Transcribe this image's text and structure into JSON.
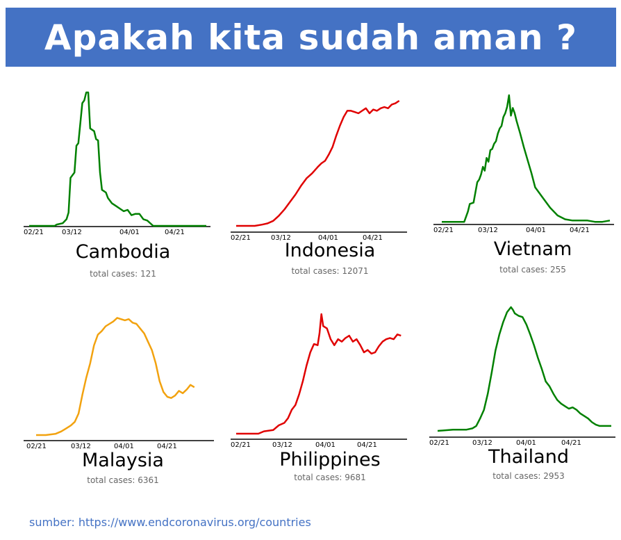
{
  "title": "Apakah kita sudah aman ?",
  "source": {
    "prefix": "sumber: ",
    "url": "https://www.endcoronavirus.org/countries"
  },
  "colors": {
    "banner": "#4472c4",
    "green": "#008000",
    "red": "#e00000",
    "orange": "#f2a20f"
  },
  "chart_data": [
    {
      "type": "line",
      "country": "Cambodia",
      "subtitle": "total cases: 121",
      "color": "green",
      "x_ticks": [
        "02/21",
        "03/12",
        "04/01",
        "04/21"
      ],
      "x_range": [
        0,
        90
      ],
      "ylim": [
        0,
        100
      ],
      "grid": false,
      "series": [
        {
          "x": [
            0,
            13,
            14,
            17,
            19,
            20,
            21,
            23,
            24,
            25,
            27,
            28,
            29,
            30,
            31,
            33,
            34,
            35,
            36,
            37,
            38,
            39,
            40,
            42,
            44,
            46,
            48,
            50,
            52,
            54,
            56,
            58,
            60,
            63,
            65,
            70,
            75,
            80,
            85,
            90
          ],
          "y": [
            0,
            0,
            1,
            2,
            5,
            10,
            36,
            40,
            60,
            62,
            92,
            94,
            100,
            100,
            73,
            71,
            65,
            64,
            40,
            27,
            26,
            25,
            21,
            17,
            15,
            13,
            11,
            12,
            8,
            9,
            9,
            5,
            4,
            0,
            0,
            0,
            0,
            0,
            0,
            0
          ]
        }
      ]
    },
    {
      "type": "line",
      "country": "Indonesia",
      "subtitle": "total cases: 12071",
      "color": "red",
      "x_ticks": [
        "02/21",
        "03/12",
        "04/01",
        "04/21"
      ],
      "x_range": [
        0,
        90
      ],
      "ylim": [
        0,
        100
      ],
      "grid": false,
      "series": [
        {
          "x": [
            0,
            10,
            14,
            17,
            20,
            23,
            26,
            29,
            32,
            35,
            38,
            41,
            44,
            46,
            48,
            50,
            52,
            54,
            56,
            58,
            60,
            62,
            64,
            66,
            68,
            70,
            72,
            74,
            76,
            78,
            80,
            82,
            84,
            86,
            88
          ],
          "y": [
            0,
            0,
            1,
            2,
            4,
            8,
            13,
            19,
            25,
            32,
            38,
            42,
            47,
            50,
            52,
            57,
            63,
            72,
            80,
            87,
            92,
            92,
            91,
            90,
            92,
            94,
            90,
            93,
            92,
            94,
            95,
            94,
            97,
            98,
            100
          ]
        }
      ]
    },
    {
      "type": "line",
      "country": "Vietnam",
      "subtitle": "total cases: 255",
      "color": "green",
      "x_ticks": [
        "02/21",
        "03/12",
        "04/01",
        "04/21"
      ],
      "x_range": [
        0,
        90
      ],
      "ylim": [
        0,
        100
      ],
      "grid": false,
      "series": [
        {
          "x": [
            0,
            12,
            14,
            15,
            17,
            18,
            19,
            20,
            21,
            22,
            23,
            24,
            25,
            26,
            27,
            28,
            29,
            30,
            31,
            32,
            33,
            34,
            35,
            36,
            37,
            38,
            39,
            40,
            42,
            44,
            46,
            48,
            50,
            54,
            58,
            62,
            66,
            70,
            74,
            78,
            82,
            86,
            90
          ],
          "y": [
            1,
            1,
            9,
            15,
            16,
            24,
            32,
            34,
            38,
            44,
            41,
            51,
            48,
            57,
            58,
            62,
            64,
            70,
            74,
            76,
            83,
            86,
            91,
            100,
            84,
            90,
            86,
            80,
            70,
            59,
            49,
            39,
            28,
            20,
            12,
            6,
            3,
            2,
            2,
            2,
            1,
            1,
            2
          ]
        }
      ]
    },
    {
      "type": "line",
      "country": "Malaysia",
      "subtitle": "total cases: 6361",
      "color": "orange",
      "x_ticks": [
        "02/21",
        "03/12",
        "04/01",
        "04/21"
      ],
      "x_range": [
        0,
        90
      ],
      "ylim": [
        0,
        100
      ],
      "grid": false,
      "series": [
        {
          "x": [
            0,
            5,
            10,
            13,
            15,
            18,
            20,
            22,
            24,
            26,
            28,
            30,
            32,
            34,
            36,
            38,
            40,
            42,
            44,
            46,
            48,
            50,
            52,
            54,
            56,
            58,
            60,
            62,
            64,
            66,
            68,
            70,
            72,
            74,
            76,
            78,
            80,
            82
          ],
          "y": [
            0,
            0,
            1,
            3,
            5,
            8,
            11,
            18,
            34,
            48,
            60,
            75,
            84,
            87,
            91,
            93,
            95,
            98,
            97,
            96,
            97,
            94,
            93,
            89,
            85,
            78,
            71,
            60,
            45,
            36,
            32,
            31,
            33,
            37,
            35,
            38,
            42,
            40
          ]
        }
      ]
    },
    {
      "type": "line",
      "country": "Philippines",
      "subtitle": "total cases: 9681",
      "color": "red",
      "x_ticks": [
        "02/21",
        "03/12",
        "04/01",
        "04/21"
      ],
      "x_range": [
        0,
        90
      ],
      "ylim": [
        0,
        100
      ],
      "grid": false,
      "series": [
        {
          "x": [
            0,
            12,
            15,
            20,
            23,
            26,
            28,
            30,
            32,
            34,
            36,
            38,
            40,
            42,
            44,
            45,
            46,
            47,
            49,
            51,
            53,
            55,
            57,
            59,
            61,
            63,
            65,
            67,
            69,
            71,
            73,
            75,
            77,
            79,
            81,
            83,
            85,
            87,
            89
          ],
          "y": [
            0,
            0,
            2,
            3,
            7,
            9,
            13,
            20,
            24,
            33,
            44,
            57,
            68,
            75,
            74,
            84,
            100,
            90,
            88,
            79,
            74,
            79,
            77,
            80,
            82,
            77,
            79,
            74,
            68,
            70,
            67,
            68,
            73,
            77,
            79,
            80,
            79,
            83,
            82
          ]
        }
      ]
    },
    {
      "type": "line",
      "country": "Thailand",
      "subtitle": "total cases: 2953",
      "color": "green",
      "x_ticks": [
        "02/21",
        "03/12",
        "04/01",
        "04/21"
      ],
      "x_range": [
        0,
        90
      ],
      "ylim": [
        0,
        100
      ],
      "grid": false,
      "series": [
        {
          "x": [
            0,
            8,
            12,
            15,
            18,
            20,
            22,
            24,
            26,
            28,
            30,
            32,
            34,
            36,
            38,
            39,
            40,
            42,
            44,
            46,
            48,
            50,
            52,
            54,
            56,
            58,
            60,
            62,
            64,
            66,
            68,
            70,
            72,
            74,
            76,
            78,
            80,
            82,
            84,
            86,
            88,
            90
          ],
          "y": [
            0,
            1,
            1,
            1,
            2,
            4,
            10,
            17,
            30,
            47,
            65,
            78,
            88,
            96,
            100,
            98,
            95,
            93,
            92,
            86,
            78,
            69,
            59,
            50,
            40,
            36,
            30,
            25,
            22,
            20,
            18,
            19,
            17,
            14,
            12,
            10,
            7,
            5,
            4,
            4,
            4,
            4
          ]
        }
      ]
    }
  ]
}
